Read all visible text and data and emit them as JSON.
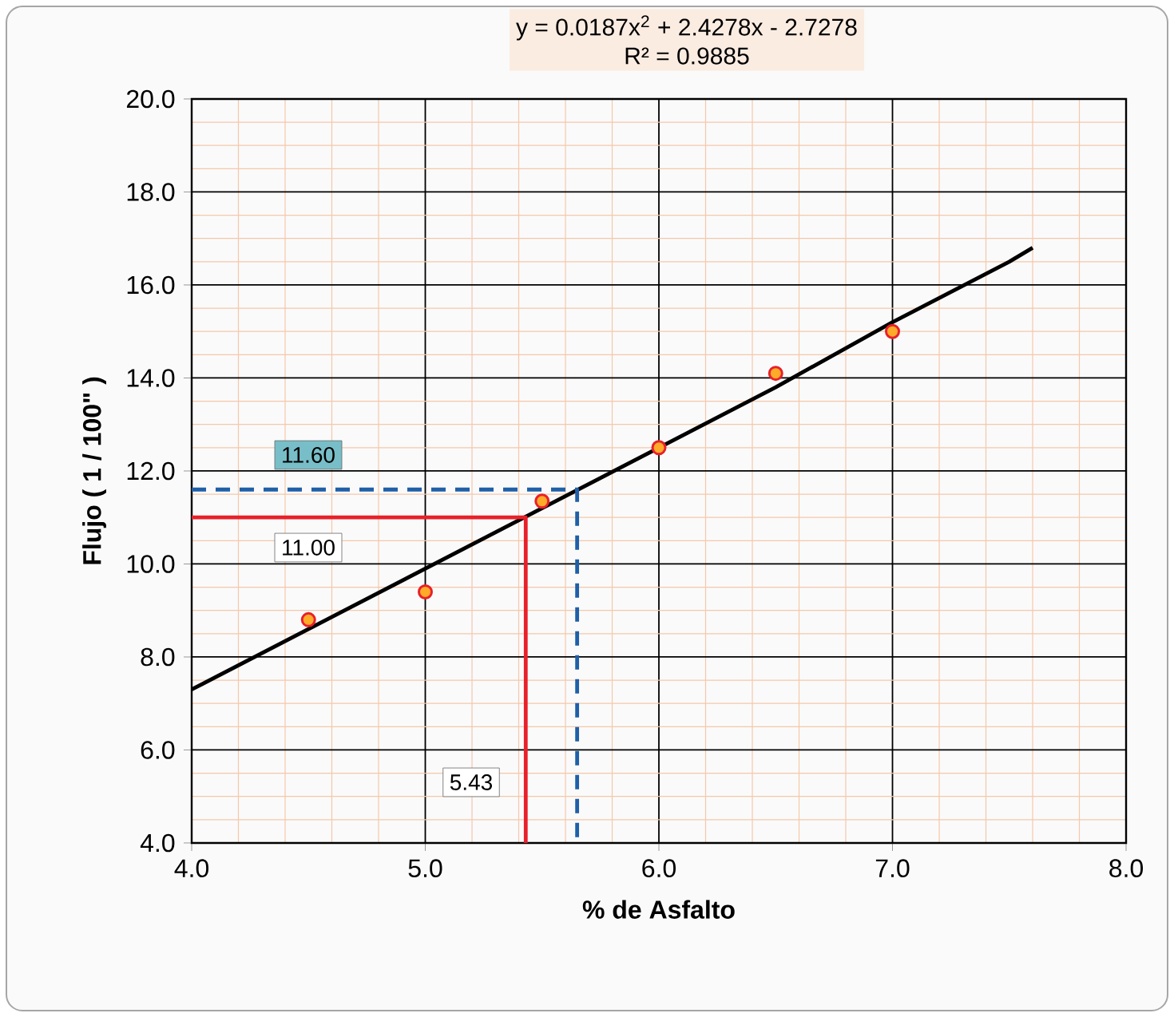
{
  "chart_data": {
    "type": "scatter",
    "xlabel": "% de Asfalto",
    "ylabel": "Flujo ( 1 / 100\" )",
    "xlim": [
      4.0,
      8.0
    ],
    "ylim": [
      4.0,
      20.0
    ],
    "xticks": [
      {
        "value": 4,
        "label": "4.0"
      },
      {
        "value": 4.2,
        "label": null
      },
      {
        "value": 4.4,
        "label": null
      },
      {
        "value": 4.6,
        "label": null
      },
      {
        "value": 4.8,
        "label": null
      },
      {
        "value": 5,
        "label": "5.0"
      },
      {
        "value": 5.2,
        "label": null
      },
      {
        "value": 5.4,
        "label": null
      },
      {
        "value": 5.6,
        "label": null
      },
      {
        "value": 5.8,
        "label": null
      },
      {
        "value": 6,
        "label": "6.0"
      },
      {
        "value": 6.2,
        "label": null
      },
      {
        "value": 6.4,
        "label": null
      },
      {
        "value": 6.6,
        "label": null
      },
      {
        "value": 6.8,
        "label": null
      },
      {
        "value": 7,
        "label": "7.0"
      },
      {
        "value": 7.2,
        "label": null
      },
      {
        "value": 7.4,
        "label": null
      },
      {
        "value": 7.6,
        "label": null
      },
      {
        "value": 7.8,
        "label": null
      },
      {
        "value": 8,
        "label": "8.0"
      }
    ],
    "yticks": [
      {
        "value": 4,
        "label": "4.0"
      },
      {
        "value": 4.5,
        "label": null
      },
      {
        "value": 5,
        "label": null
      },
      {
        "value": 5.5,
        "label": null
      },
      {
        "value": 6,
        "label": "6.0"
      },
      {
        "value": 6.5,
        "label": null
      },
      {
        "value": 7,
        "label": null
      },
      {
        "value": 7.5,
        "label": null
      },
      {
        "value": 8,
        "label": "8.0"
      },
      {
        "value": 8.5,
        "label": null
      },
      {
        "value": 9,
        "label": null
      },
      {
        "value": 9.5,
        "label": null
      },
      {
        "value": 10,
        "label": "10.0"
      },
      {
        "value": 10.5,
        "label": null
      },
      {
        "value": 11,
        "label": null
      },
      {
        "value": 11.5,
        "label": null
      },
      {
        "value": 12,
        "label": "12.0"
      },
      {
        "value": 12.5,
        "label": null
      },
      {
        "value": 13,
        "label": null
      },
      {
        "value": 13.5,
        "label": null
      },
      {
        "value": 14,
        "label": "14.0"
      },
      {
        "value": 14.5,
        "label": null
      },
      {
        "value": 15,
        "label": null
      },
      {
        "value": 15.5,
        "label": null
      },
      {
        "value": 16,
        "label": "16.0"
      },
      {
        "value": 16.5,
        "label": null
      },
      {
        "value": 17,
        "label": null
      },
      {
        "value": 17.5,
        "label": null
      },
      {
        "value": 18,
        "label": "18.0"
      },
      {
        "value": 18.5,
        "label": null
      },
      {
        "value": 19,
        "label": null
      },
      {
        "value": 19.5,
        "label": null
      },
      {
        "value": 20,
        "label": "20.0"
      }
    ],
    "grid": true,
    "series": [
      {
        "type": "line",
        "color": "#000000",
        "line_style": "solid",
        "x": [
          4.0,
          4.5,
          5.0,
          5.5,
          6.0,
          6.5,
          7.0,
          7.5,
          7.6
        ],
        "values": [
          7.3,
          8.6,
          9.9,
          11.2,
          12.5,
          13.8,
          15.2,
          16.5,
          16.8
        ]
      },
      {
        "type": "line",
        "color": "#e8202a",
        "line_style": "solid",
        "x": [
          4.0,
          5.43,
          5.43
        ],
        "values": [
          11.0,
          11.0,
          4.0
        ]
      },
      {
        "type": "line",
        "color": "#1f5fa8",
        "line_style": "dashed",
        "x": [
          4.0,
          5.65,
          5.65
        ],
        "values": [
          11.6,
          11.6,
          4.0
        ]
      },
      {
        "color": "#e8202a",
        "marker": "circle",
        "x": [
          4.5,
          5.0,
          5.5,
          6.0,
          6.5,
          7.0
        ],
        "values": [
          8.8,
          9.4,
          11.35,
          12.5,
          14.1,
          15.0
        ]
      }
    ],
    "annotations": [
      "y = 0.0187x$^{2}$ + 2.4278x - 2.7278",
      "R² = 0.9885",
      "11.60",
      "11.00",
      "5.43"
    ]
  }
}
